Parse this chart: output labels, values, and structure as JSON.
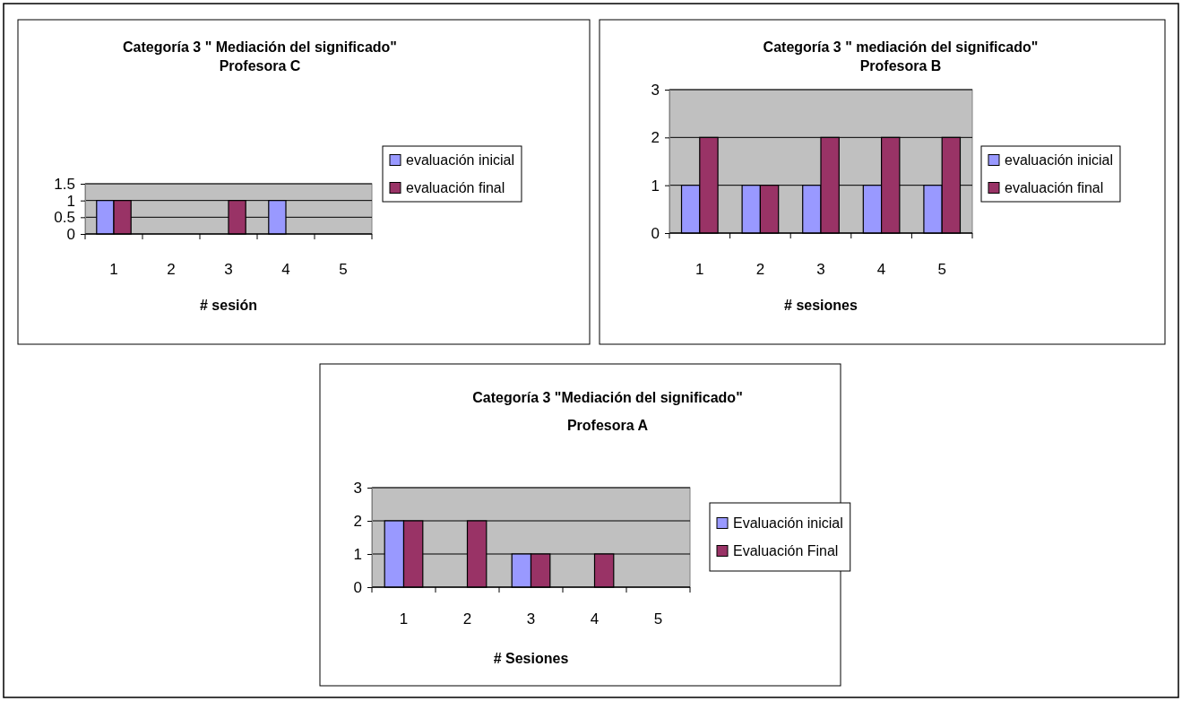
{
  "chart_data": [
    {
      "type": "bar",
      "title": "Categoría 3 \" Mediación del significado\"",
      "subtitle": "Profesora C",
      "xlabel": "# sesión",
      "categories": [
        "1",
        "2",
        "3",
        "4",
        "5"
      ],
      "series": [
        {
          "name": "evaluación inicial",
          "color": "#9999ff",
          "values": [
            1,
            0,
            0,
            1,
            0
          ]
        },
        {
          "name": "evaluación final",
          "color": "#993366",
          "values": [
            1,
            0,
            1,
            0,
            0
          ]
        }
      ],
      "ylim": [
        0,
        1.5
      ],
      "yticks": [
        0,
        0.5,
        1,
        1.5
      ],
      "grid": "y",
      "legend": "right"
    },
    {
      "type": "bar",
      "title": "Categoría 3 \" mediación del significado\"",
      "subtitle": "Profesora B",
      "xlabel": "# sesiones",
      "categories": [
        "1",
        "2",
        "3",
        "4",
        "5"
      ],
      "series": [
        {
          "name": "evaluación inicial",
          "color": "#9999ff",
          "values": [
            1,
            1,
            1,
            1,
            1
          ]
        },
        {
          "name": "evaluación final",
          "color": "#993366",
          "values": [
            2,
            1,
            2,
            2,
            2
          ]
        }
      ],
      "ylim": [
        0,
        3
      ],
      "yticks": [
        0,
        1,
        2,
        3
      ],
      "grid": "y",
      "legend": "right"
    },
    {
      "type": "bar",
      "title": "Categoría 3 \"Mediación del significado\"",
      "subtitle": "Profesora A",
      "xlabel": "# Sesiones",
      "categories": [
        "1",
        "2",
        "3",
        "4",
        "5"
      ],
      "series": [
        {
          "name": "Evaluación inicial",
          "color": "#9999ff",
          "values": [
            2,
            0,
            1,
            0,
            0
          ]
        },
        {
          "name": "Evaluación Final",
          "color": "#993366",
          "values": [
            2,
            2,
            1,
            1,
            0
          ]
        }
      ],
      "ylim": [
        0,
        3
      ],
      "yticks": [
        0,
        1,
        2,
        3
      ],
      "grid": "y",
      "legend": "right"
    }
  ]
}
